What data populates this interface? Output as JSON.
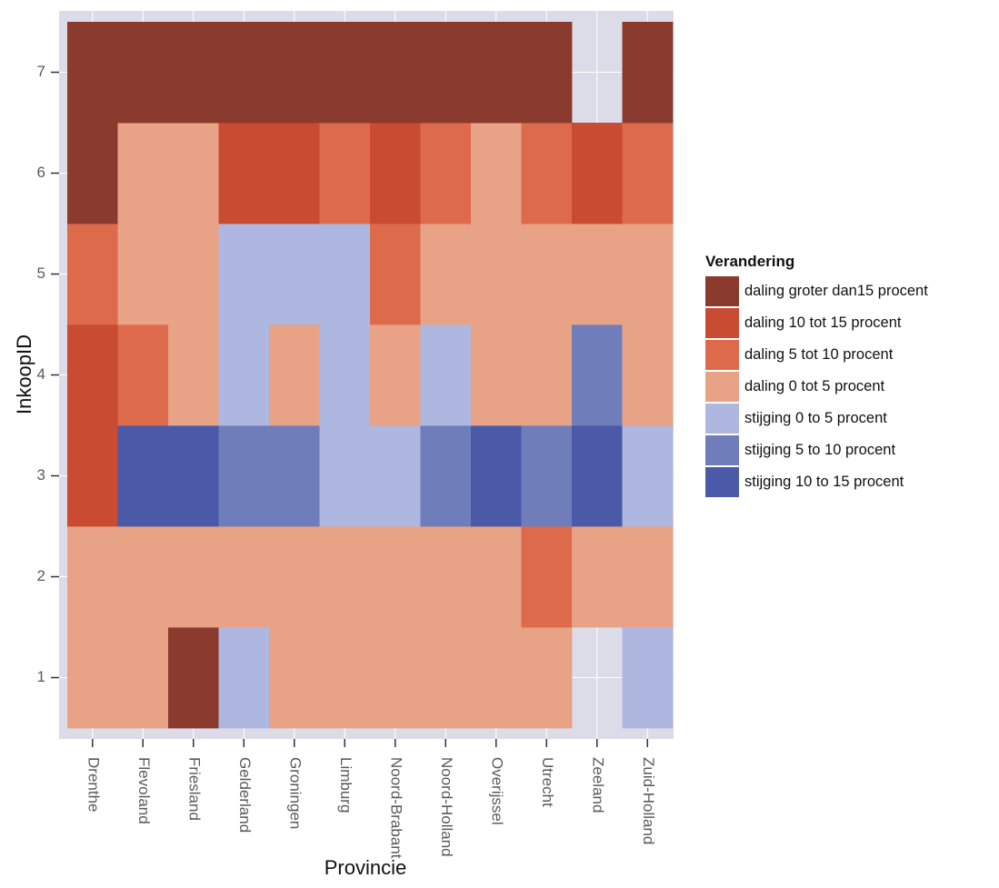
{
  "chart_data": {
    "type": "heatmap",
    "title": "",
    "xlabel": "Provincie",
    "ylabel": "InkoopID",
    "x": [
      "Drenthe",
      "Flevoland",
      "Friesland",
      "Gelderland",
      "Groningen",
      "Limburg",
      "Noord-Brabant",
      "Noord-Holland",
      "Overijssel",
      "Utrecht",
      "Zeeland",
      "Zuid-Holland"
    ],
    "y": [
      1,
      2,
      3,
      4,
      5,
      6,
      7
    ],
    "grid": true,
    "legend": {
      "title": "Verandering",
      "position": "right",
      "categories": [
        {
          "label": "daling groter dan15 procent",
          "color": "#8b3a2e"
        },
        {
          "label": "daling 10 tot 15 procent",
          "color": "#c84b32"
        },
        {
          "label": "daling 5 tot 10 procent",
          "color": "#de6a4c"
        },
        {
          "label": "daling 0 tot 5 procent",
          "color": "#e8a285"
        },
        {
          "label": "stijging 0 to 5 procent",
          "color": "#aeb7e0"
        },
        {
          "label": "stijging 5 to 10 procent",
          "color": "#6f7dbb"
        },
        {
          "label": "stijging 10 to 15 procent",
          "color": "#4a5aa8"
        }
      ]
    },
    "matrix": [
      [
        3,
        3,
        0,
        4,
        3,
        3,
        3,
        3,
        3,
        3,
        -1,
        4
      ],
      [
        3,
        3,
        3,
        3,
        3,
        3,
        3,
        3,
        3,
        2,
        3,
        3
      ],
      [
        1,
        6,
        6,
        5,
        5,
        4,
        4,
        5,
        6,
        5,
        6,
        4
      ],
      [
        1,
        2,
        3,
        4,
        3,
        4,
        3,
        4,
        3,
        3,
        5,
        3
      ],
      [
        2,
        3,
        3,
        4,
        4,
        4,
        2,
        3,
        3,
        3,
        3,
        3
      ],
      [
        0,
        3,
        3,
        1,
        1,
        2,
        1,
        2,
        3,
        2,
        1,
        2
      ],
      [
        0,
        0,
        0,
        0,
        0,
        0,
        0,
        0,
        0,
        0,
        null,
        0
      ]
    ]
  }
}
